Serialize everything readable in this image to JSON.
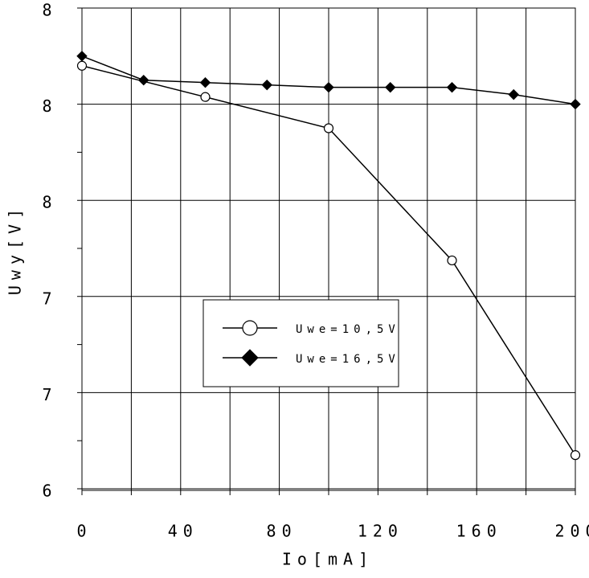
{
  "chart_data": {
    "type": "line",
    "x_label": "Io[mA]",
    "y_label": "Uwy[V]",
    "xlim": [
      0,
      200
    ],
    "xticks": [
      0,
      40,
      80,
      120,
      160,
      200
    ],
    "x_minor_ticks": [
      20,
      60,
      100,
      140,
      180
    ],
    "ylim": [
      6.4,
      8.4
    ],
    "yticks": [
      {
        "value": 6.4,
        "label": "6"
      },
      {
        "value": 6.8,
        "label": "7"
      },
      {
        "value": 7.2,
        "label": "7"
      },
      {
        "value": 7.6,
        "label": "8"
      },
      {
        "value": 8.0,
        "label": "8"
      },
      {
        "value": 8.4,
        "label": "8"
      }
    ],
    "y_minor_ticks": [
      6.6,
      7.0,
      7.4,
      7.8,
      8.2
    ],
    "grid": true,
    "series": [
      {
        "name": "Uwe=10,5V",
        "color": "#000000",
        "marker": "circle",
        "x": [
          0,
          50,
          100,
          150,
          200
        ],
        "values": [
          8.16,
          8.03,
          7.9,
          7.35,
          6.54
        ]
      },
      {
        "name": "Uwe=16,5V",
        "color": "#000000",
        "marker": "diamond",
        "x": [
          0,
          25,
          50,
          75,
          100,
          125,
          150,
          175,
          200
        ],
        "values": [
          8.2,
          8.1,
          8.09,
          8.08,
          8.07,
          8.07,
          8.07,
          8.04,
          8.0
        ]
      }
    ]
  }
}
